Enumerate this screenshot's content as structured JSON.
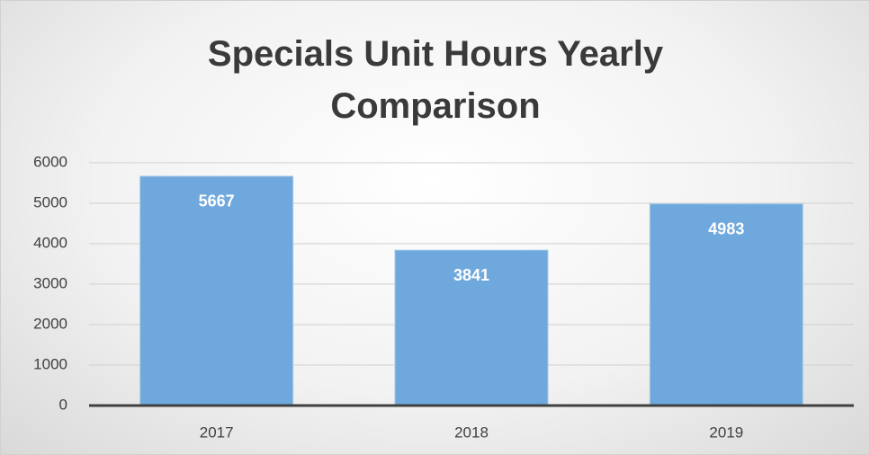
{
  "chart_data": {
    "type": "bar",
    "title": "Specials Unit Hours Yearly Comparison",
    "categories": [
      "2017",
      "2018",
      "2019"
    ],
    "values": [
      5667,
      3841,
      4983
    ],
    "color": "#6fa8dc",
    "ylim": [
      0,
      6000
    ],
    "yticks": [
      0,
      1000,
      2000,
      3000,
      4000,
      5000,
      6000
    ],
    "grid": true
  }
}
